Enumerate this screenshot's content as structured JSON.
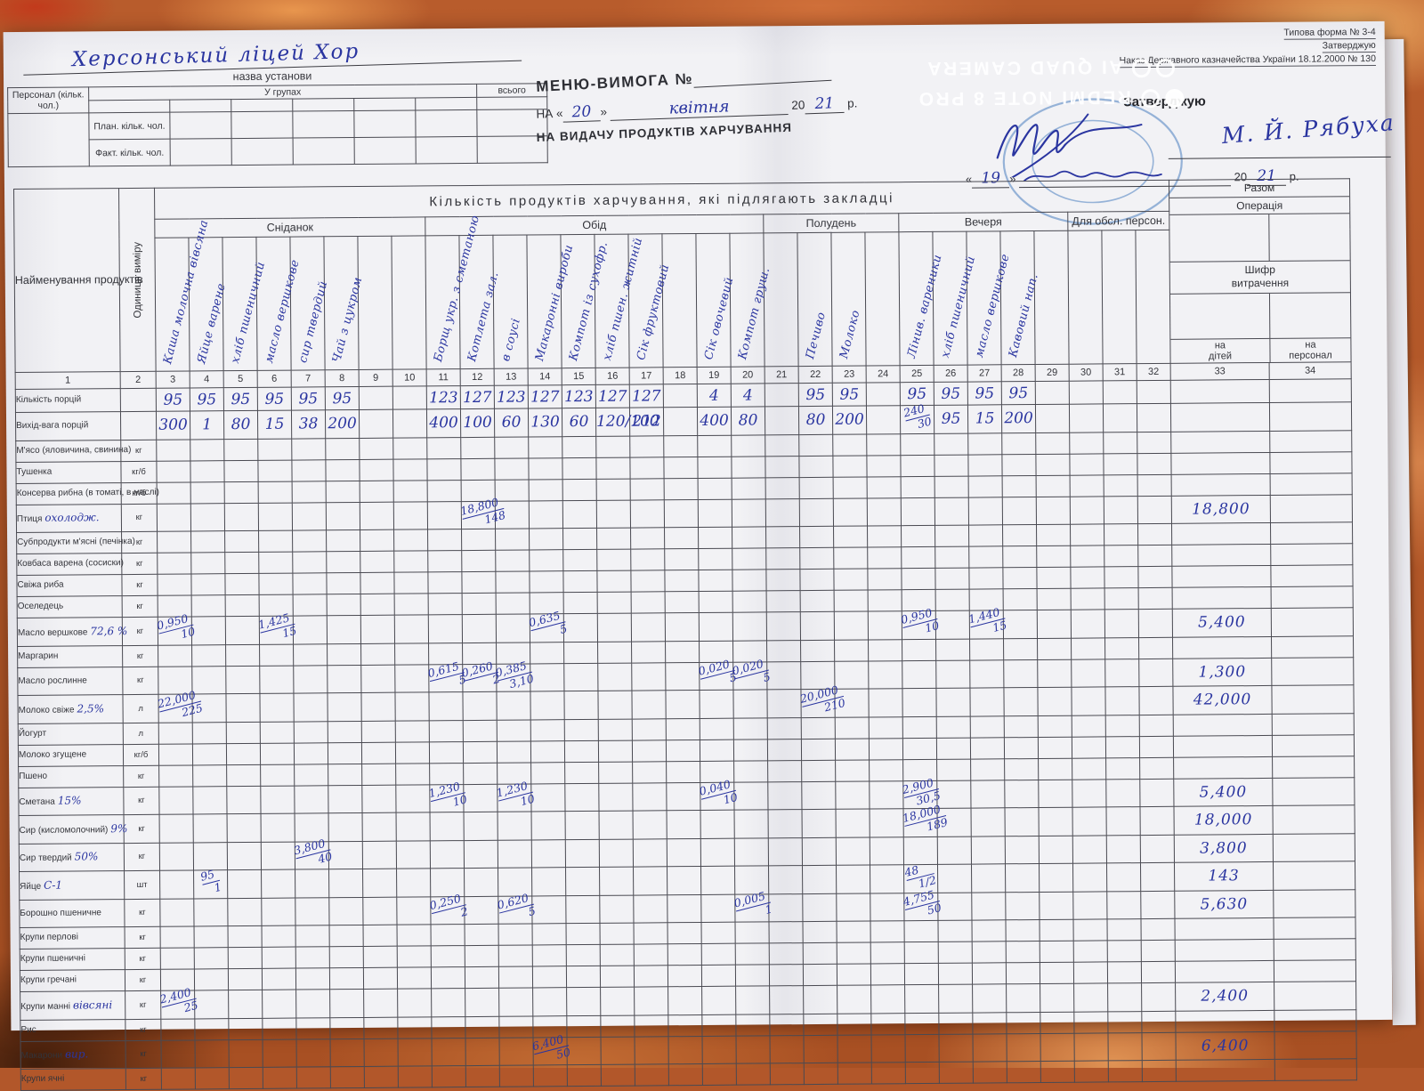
{
  "watermark": {
    "brand": "REDMI NOTE 8 PRO",
    "camera": "AI QUAD CAMERA"
  },
  "header": {
    "institution_name_handwritten": "Херсонський ліцей Хор",
    "institution_caption": "назва установи",
    "personnel": {
      "corner": "Персонал (кільк. чол.)",
      "groups": "У групах",
      "total": "всього",
      "plan_row": "План. кільк. чол.",
      "fact_row": "Факт. кільк. чол."
    },
    "menu_title": "МЕНЮ-ВИМОГА №",
    "date_line": {
      "prefix": "НА «",
      "day": "20",
      "close": "»",
      "month": "квітня",
      "year_prefix": "20",
      "year": "21",
      "year_suffix": "р."
    },
    "subtitle": "НА ВИДАЧУ ПРОДУКТІВ ХАРЧУВАННЯ",
    "approval": {
      "form_ref": "Типова форма № 3-4",
      "approve_small": "Затверджую",
      "order_ref": "Наказ Державного казначейства України 18.12.2000 № 130",
      "approve_label": "Затверджую",
      "signature_name": "М. Й. Рябуха",
      "day": "19",
      "year_prefix": "20",
      "year": "21",
      "year_suffix": "р."
    }
  },
  "table": {
    "main_title": "Кількість продуктів харчування, які підлягають закладці",
    "col1_header": "Найменування продуктів",
    "col2_header": "Одиниця виміру",
    "right_block": {
      "razom": "Разом",
      "operation": "Операція",
      "shyfr": "Шифр\nвитрачення",
      "na_ditei": "на\nдітей",
      "na_personal": "на\nперсонал"
    },
    "meal_groups": [
      {
        "label": "Сніданок",
        "cols": 8
      },
      {
        "label": "Обід",
        "cols": 10
      },
      {
        "label": "Полудень",
        "cols": 4
      },
      {
        "label": "Вечеря",
        "cols": 5
      },
      {
        "label": "Для обсл. персон.",
        "cols": 3
      }
    ],
    "dish_labels": {
      "3": "Каша молочна вівсяна",
      "4": "Яйце варене",
      "5": "хліб пшеничний",
      "6": "масло вершкове",
      "7": "сир твердий",
      "8": "Чай з цукром",
      "11": "Борщ укр. з сметаною",
      "12": "Котлета зал.",
      "13": "в соусі",
      "14": "Макаронні вироби",
      "15": "Компот із сухофр.",
      "16": "хліб пшен. житній",
      "17": "Сік фруктовий",
      "19": "Сік овочевий",
      "20": "Компот груш.",
      "22": "Печиво",
      "23": "Молоко",
      "25": "Лінив. вареники",
      "26": "хліб пшеничний",
      "27": "масло вершкове",
      "28": "Кавовий нап."
    },
    "column_numbers": [
      "1",
      "2",
      "3",
      "4",
      "5",
      "6",
      "7",
      "8",
      "9",
      "10",
      "11",
      "12",
      "13",
      "14",
      "15",
      "16",
      "17",
      "18",
      "19",
      "20",
      "21",
      "22",
      "23",
      "24",
      "25",
      "26",
      "27",
      "28",
      "29",
      "30",
      "31",
      "32",
      "33",
      "34"
    ],
    "rows": [
      {
        "label": "Кількість порцій",
        "unit": "",
        "cls": "portions",
        "cells": {
          "3": "95",
          "4": "95",
          "5": "95",
          "6": "95",
          "7": "95",
          "8": "95",
          "11": "123",
          "12": "127",
          "13": "123",
          "14": "127",
          "15": "123",
          "16": "127",
          "17": "127",
          "19": "4",
          "20": "4",
          "22": "95",
          "23": "95",
          "25": "95",
          "26": "95",
          "27": "95",
          "28": "95"
        }
      },
      {
        "label": "Вихід-вага порцій",
        "unit": "",
        "cls": "portions",
        "cells": {
          "3": "300",
          "4": "1",
          "5": "80",
          "6": "15",
          "7": "38",
          "8": "200",
          "11": "400",
          "12": "100",
          "13": "60",
          "14": "130",
          "15": "60",
          "16": "120/100",
          "17": "212",
          "19": "400",
          "20": "80",
          "22": "80",
          "23": "200",
          "25": "240|30",
          "26": "95",
          "27": "15",
          "28": "200"
        }
      },
      {
        "label": "М'ясо (яловичина, свинина)",
        "unit": "кг",
        "cells": {}
      },
      {
        "label": "Тушенка",
        "unit": "кг/б",
        "cells": {}
      },
      {
        "label": "Консерва рибна (в томаті, в маслі)",
        "unit": "кг/б",
        "cells": {}
      },
      {
        "label": "Птиця",
        "note": "охолодж.",
        "unit": "кг",
        "cells": {
          "12": "18,800|148",
          "33": "18,800"
        }
      },
      {
        "label": "Субпродукти м'ясні (печінка)",
        "unit": "кг",
        "cells": {}
      },
      {
        "label": "Ковбаса варена (сосиски)",
        "unit": "кг",
        "cells": {}
      },
      {
        "label": "Свіжа риба",
        "unit": "кг",
        "cells": {}
      },
      {
        "label": "Оселедець",
        "unit": "кг",
        "cells": {}
      },
      {
        "label": "Масло вершкове",
        "note": "72,6 %",
        "unit": "кг",
        "cells": {
          "3": "0,950|10",
          "6": "1,425|15",
          "14": "0,635|5",
          "25": "0,950|10",
          "27": "1,440|15",
          "33": "5,400"
        }
      },
      {
        "label": "Маргарин",
        "unit": "кг",
        "cells": {}
      },
      {
        "label": "Масло рослинне",
        "unit": "кг",
        "cells": {
          "11": "0,615|5",
          "12": "0,260|2",
          "13": "0,385|3,10",
          "19": "0,020|5",
          "20": "0,020|5",
          "33": "1,300"
        }
      },
      {
        "label": "Молоко свіже",
        "note": "2,5%",
        "unit": "л",
        "cells": {
          "3": "22,000|225",
          "22": "20,000|210",
          "33": "42,000"
        }
      },
      {
        "label": "Йогурт",
        "unit": "л",
        "cells": {}
      },
      {
        "label": "Молоко згущене",
        "unit": "кг/б",
        "cells": {}
      },
      {
        "label": "Пшено",
        "unit": "кг",
        "cells": {}
      },
      {
        "label": "Сметана",
        "note": "15%",
        "unit": "кг",
        "cells": {
          "11": "1,230|10",
          "13": "1,230|10",
          "19": "0,040|10",
          "25": "2,900|30,5",
          "33": "5,400"
        }
      },
      {
        "label": "Сир (кисломолочний)",
        "note": "9%",
        "unit": "кг",
        "cells": {
          "25": "18,000|189",
          "33": "18,000"
        }
      },
      {
        "label": "Сир твердий",
        "note": "50%",
        "unit": "кг",
        "cells": {
          "7": "3,800|40",
          "33": "3,800"
        }
      },
      {
        "label": "Яйце",
        "note": "С-1",
        "unit": "шт",
        "cells": {
          "4": "95|1",
          "25": "48|1/2",
          "33": "143"
        }
      },
      {
        "label": "Борошно пшеничне",
        "unit": "кг",
        "cells": {
          "11": "0,250|2",
          "13": "0,620|5",
          "20": "0,005|1",
          "25": "4,755|50",
          "33": "5,630"
        }
      },
      {
        "label": "Крупи перлові",
        "unit": "кг",
        "cells": {}
      },
      {
        "label": "Крупи пшеничні",
        "unit": "кг",
        "cells": {}
      },
      {
        "label": "Крупи гречані",
        "unit": "кг",
        "cells": {}
      },
      {
        "label": "Крупи манні",
        "note": "вівсяні",
        "unit": "кг",
        "cells": {
          "3": "2,400|25",
          "33": "2,400"
        }
      },
      {
        "label": "Рис",
        "unit": "кг",
        "cells": {}
      },
      {
        "label": "Макарони",
        "note": "вир.",
        "unit": "кг",
        "cells": {
          "14": "6,400|50",
          "33": "6,400"
        }
      },
      {
        "label": "Крупи ячні",
        "unit": "кг",
        "cells": {}
      }
    ]
  }
}
